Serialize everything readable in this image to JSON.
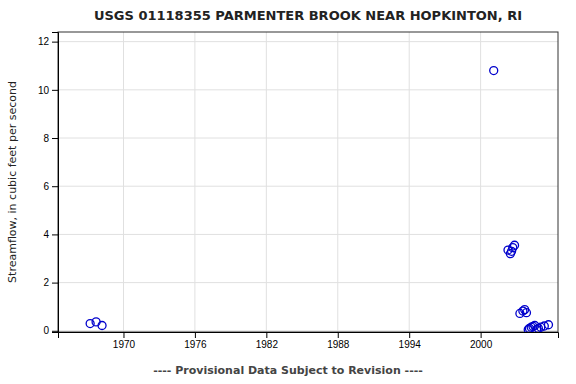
{
  "chart_data": {
    "type": "scatter",
    "title": "USGS 01118355 PARMENTER BROOK NEAR HOPKINTON, RI",
    "subtitle": "---- Provisional Data Subject to Revision ----",
    "ylabel": "Streamflow, in cubic feet per second",
    "x": [
      1967.2,
      1967.7,
      1968.2,
      2001.1,
      2002.3,
      2002.5,
      2002.6,
      2002.7,
      2002.85,
      2003.3,
      2003.55,
      2003.7,
      2003.85,
      2004.0,
      2004.1,
      2004.25,
      2004.4,
      2004.55,
      2004.7,
      2004.85,
      2005.05,
      2005.35,
      2005.7
    ],
    "values": [
      0.3,
      0.37,
      0.22,
      10.8,
      3.35,
      3.2,
      3.3,
      3.45,
      3.55,
      0.72,
      0.82,
      0.88,
      0.75,
      0.05,
      0.1,
      0.15,
      0.18,
      0.22,
      0.05,
      0.1,
      0.15,
      0.2,
      0.25
    ],
    "color": "#0000cc",
    "marker": "open-circle",
    "xlim": [
      1964.5,
      2006.5
    ],
    "ylim": [
      -0.05,
      12.4
    ],
    "xticks": [
      1970,
      1976,
      1982,
      1988,
      1994,
      2000
    ],
    "yticks": [
      0,
      2,
      4,
      6,
      8,
      10,
      12
    ],
    "grid": true
  }
}
